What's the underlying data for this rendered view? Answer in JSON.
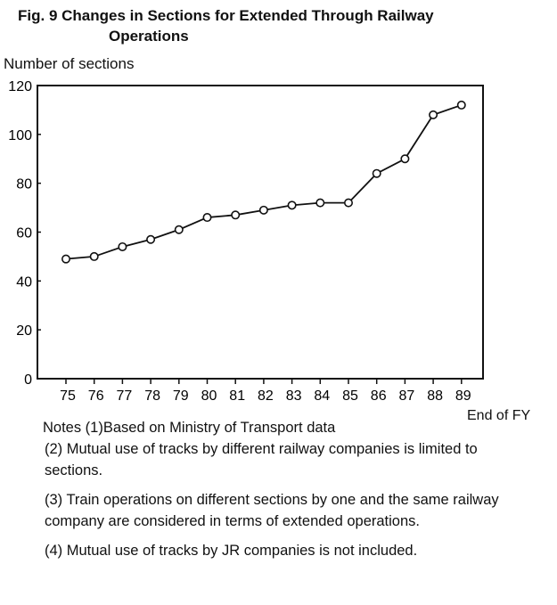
{
  "chart_data": {
    "type": "line",
    "title_line1": "Fig. 9 Changes in Sections for Extended Through Railway",
    "title_line2": "Operations",
    "ylabel": "Number of sections",
    "xlabel": "End of FY",
    "x": [
      "75",
      "76",
      "77",
      "78",
      "79",
      "80",
      "81",
      "82",
      "83",
      "84",
      "85",
      "86",
      "87",
      "88",
      "89"
    ],
    "values": [
      49,
      50,
      54,
      57,
      61,
      66,
      67,
      69,
      71,
      72,
      72,
      84,
      90,
      108,
      112
    ],
    "ylim": [
      0,
      120
    ],
    "yticks": [
      "0",
      "20",
      "40",
      "60",
      "80",
      "100",
      "120"
    ],
    "grid": false,
    "marker": "open-circle"
  },
  "notes": [
    "Notes (1)Based on Ministry of Transport data",
    "(2) Mutual use of tracks by different railway companies is limited to sections.",
    "(3) Train operations on different sections by one and the same railway company are considered in terms of extended operations.",
    "(4) Mutual use of tracks by JR companies is not included."
  ]
}
